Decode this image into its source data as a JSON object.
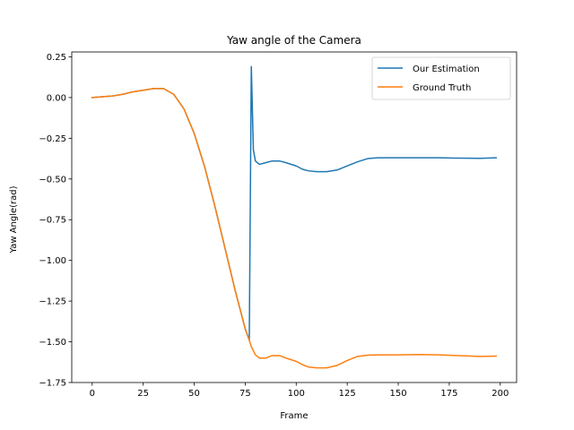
{
  "chart_data": {
    "type": "line",
    "title": "Yaw angle of the Camera",
    "xlabel": "Frame",
    "ylabel": "Yaw Angle(rad)",
    "xlim": [
      -10,
      208
    ],
    "ylim": [
      -1.75,
      0.28
    ],
    "xticks": [
      0,
      25,
      50,
      75,
      100,
      125,
      150,
      175,
      200
    ],
    "yticks": [
      0.25,
      0.0,
      -0.25,
      -0.5,
      -0.75,
      -1.0,
      -1.25,
      -1.5,
      -1.75
    ],
    "ytick_labels": [
      "0.25",
      "0.00",
      "−0.25",
      "−0.50",
      "−0.75",
      "−1.00",
      "−1.25",
      "−1.50",
      "−1.75"
    ],
    "legend": {
      "position": "top-right"
    },
    "series": [
      {
        "name": "Our Estimation",
        "color": "#1f77b4",
        "x": [
          0,
          5,
          10,
          15,
          20,
          25,
          30,
          35,
          40,
          45,
          50,
          55,
          60,
          65,
          70,
          75,
          77,
          78,
          79,
          80,
          82,
          85,
          88,
          92,
          95,
          100,
          103,
          106,
          110,
          115,
          120,
          125,
          130,
          135,
          140,
          150,
          160,
          170,
          180,
          190,
          198
        ],
        "y": [
          0.0,
          0.005,
          0.01,
          0.02,
          0.035,
          0.045,
          0.055,
          0.055,
          0.02,
          -0.07,
          -0.22,
          -0.42,
          -0.66,
          -0.92,
          -1.18,
          -1.42,
          -1.49,
          0.19,
          -0.32,
          -0.39,
          -0.41,
          -0.4,
          -0.39,
          -0.39,
          -0.4,
          -0.42,
          -0.44,
          -0.45,
          -0.455,
          -0.455,
          -0.445,
          -0.42,
          -0.395,
          -0.375,
          -0.37,
          -0.37,
          -0.37,
          -0.37,
          -0.372,
          -0.373,
          -0.37
        ]
      },
      {
        "name": "Ground Truth",
        "color": "#ff7f0e",
        "x": [
          0,
          5,
          10,
          15,
          20,
          25,
          30,
          35,
          40,
          45,
          50,
          55,
          60,
          65,
          70,
          75,
          77,
          78,
          80,
          82,
          85,
          88,
          92,
          95,
          100,
          103,
          106,
          110,
          115,
          120,
          125,
          130,
          135,
          140,
          150,
          160,
          170,
          180,
          190,
          198
        ],
        "y": [
          0.0,
          0.005,
          0.01,
          0.02,
          0.035,
          0.045,
          0.055,
          0.055,
          0.02,
          -0.07,
          -0.22,
          -0.42,
          -0.66,
          -0.92,
          -1.18,
          -1.42,
          -1.49,
          -1.53,
          -1.58,
          -1.6,
          -1.6,
          -1.585,
          -1.585,
          -1.6,
          -1.62,
          -1.64,
          -1.655,
          -1.66,
          -1.66,
          -1.645,
          -1.615,
          -1.59,
          -1.582,
          -1.58,
          -1.58,
          -1.578,
          -1.58,
          -1.585,
          -1.59,
          -1.588
        ]
      }
    ]
  }
}
